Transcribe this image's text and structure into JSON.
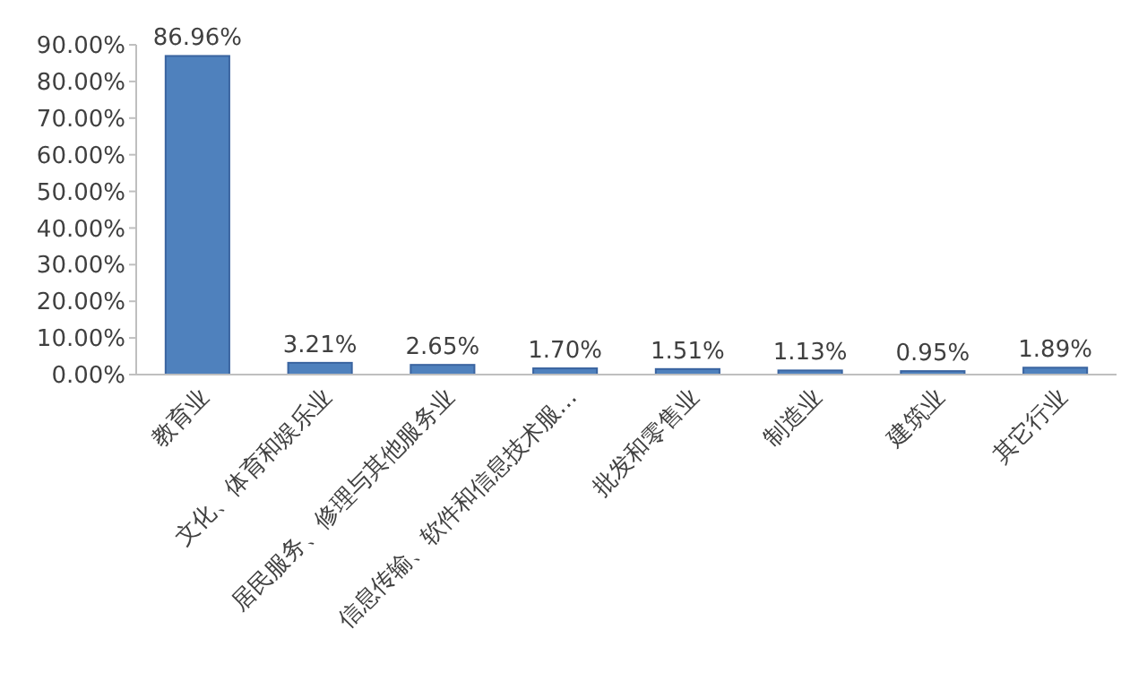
{
  "chart_data": {
    "type": "bar",
    "categories": [
      "教育业",
      "文化、体育和娱乐业",
      "居民服务、修理与其他服务业",
      "信息传输、软件和信息技术服…",
      "批发和零售业",
      "制造业",
      "建筑业",
      "其它行业"
    ],
    "values": [
      86.96,
      3.21,
      2.65,
      1.7,
      1.51,
      1.13,
      0.95,
      1.89
    ],
    "value_labels": [
      "86.96%",
      "3.21%",
      "2.65%",
      "1.70%",
      "1.51%",
      "1.13%",
      "0.95%",
      "1.89%"
    ],
    "color": "#4f81bd",
    "ylim": [
      0,
      90
    ],
    "yticks": [
      {
        "value": 0,
        "label": "0.00%"
      },
      {
        "value": 10,
        "label": "10.00%"
      },
      {
        "value": 20,
        "label": "20.00%"
      },
      {
        "value": 30,
        "label": "30.00%"
      },
      {
        "value": 40,
        "label": "40.00%"
      },
      {
        "value": 50,
        "label": "50.00%"
      },
      {
        "value": 60,
        "label": "60.00%"
      },
      {
        "value": 70,
        "label": "70.00%"
      },
      {
        "value": 80,
        "label": "80.00%"
      },
      {
        "value": 90,
        "label": "90.00%"
      }
    ],
    "grid": false
  }
}
